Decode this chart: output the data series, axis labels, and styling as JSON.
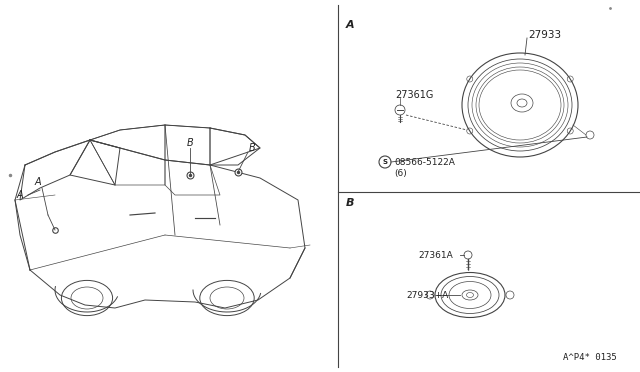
{
  "bg_color": "#ffffff",
  "line_color": "#444444",
  "text_color": "#222222",
  "part_code": "A^P4* 0135",
  "section_a_label": "A",
  "section_b_label": "B",
  "parts_a": {
    "speaker_label": "27933",
    "grommet_label": "27361G",
    "screw_label": "08566-5122A",
    "screw_qty": "(6)"
  },
  "parts_b": {
    "screw_label": "27361A",
    "speaker_label": "27933+A"
  },
  "car_labels": {
    "a_label": "A",
    "b_label1": "B",
    "b_label2": "B"
  }
}
